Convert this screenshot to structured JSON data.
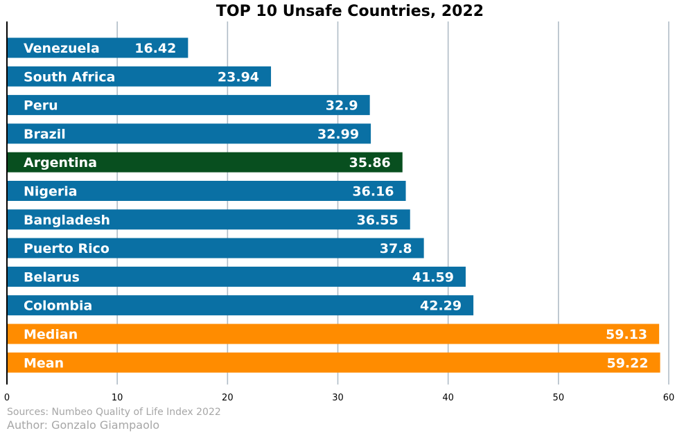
{
  "footer": {
    "source": "Sources: Numbeo Quality of Life Index 2022",
    "author": "Author: Gonzalo Giampaolo"
  },
  "colors": {
    "default_bar": "#0a70a4",
    "highlight_bar": "#084f1f",
    "stat_bar": "#ff8c00",
    "grid": "#b0bcc6",
    "outside_label": "#0a70a4"
  },
  "chart_data": {
    "type": "bar",
    "orientation": "horizontal",
    "title": "TOP 10 Unsafe Countries, 2022",
    "xlabel": "",
    "ylabel": "",
    "xlim": [
      0,
      60
    ],
    "xticks": [
      0,
      10,
      20,
      30,
      40,
      50,
      60
    ],
    "grid": "vertical",
    "bars": [
      {
        "name": "Venezuela",
        "value": 16.42,
        "group": "country"
      },
      {
        "name": "South Africa",
        "value": 23.94,
        "group": "country"
      },
      {
        "name": "Peru",
        "value": 32.9,
        "group": "country"
      },
      {
        "name": "Brazil",
        "value": 32.99,
        "group": "country"
      },
      {
        "name": "Argentina",
        "value": 35.86,
        "group": "highlight"
      },
      {
        "name": "Nigeria",
        "value": 36.16,
        "group": "country"
      },
      {
        "name": "Bangladesh",
        "value": 36.55,
        "group": "country"
      },
      {
        "name": "Puerto Rico",
        "value": 37.8,
        "group": "country"
      },
      {
        "name": "Belarus",
        "value": 41.59,
        "group": "country"
      },
      {
        "name": "Colombia",
        "value": 42.29,
        "group": "country"
      },
      {
        "name": "Median",
        "value": 59.13,
        "group": "stat"
      },
      {
        "name": "Mean",
        "value": 59.22,
        "group": "stat"
      }
    ]
  }
}
